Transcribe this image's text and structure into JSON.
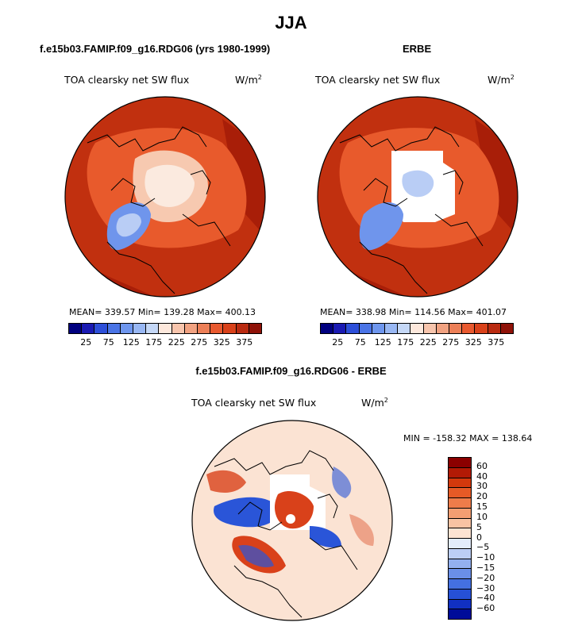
{
  "figure_title": "JJA",
  "panels": [
    {
      "title": "f.e15b03.FAMIP.f09_g16.RDG06 (yrs 1980-1999)",
      "variable": "TOA clearsky net SW flux",
      "unit_base": "W/m",
      "unit_exp": "2",
      "stats": "MEAN= 339.57   Min= 139.28   Max= 400.13"
    },
    {
      "title": "ERBE",
      "variable": "TOA clearsky net SW flux",
      "unit_base": "W/m",
      "unit_exp": "2",
      "stats": "MEAN= 338.98   Min= 114.56   Max= 401.07"
    },
    {
      "title": "f.e15b03.FAMIP.f09_g16.RDG06 - ERBE",
      "variable": "TOA clearsky net SW flux",
      "unit_base": "W/m",
      "unit_exp": "2",
      "stats": "MIN = -158.32  MAX = 138.64"
    }
  ],
  "abs_colorbar": {
    "colors": [
      "#00007f",
      "#1a1ab3",
      "#2d4fd9",
      "#4a74e6",
      "#6e96ee",
      "#98b7f3",
      "#c5d8f7",
      "#fde8dc",
      "#f7c5ad",
      "#f1a281",
      "#ec7f57",
      "#e8592f",
      "#d9411a",
      "#b92a10",
      "#8f1208"
    ],
    "ticks": [
      "25",
      "75",
      "125",
      "175",
      "225",
      "275",
      "325",
      "375"
    ]
  },
  "diff_colorbar": {
    "colors": [
      "#8b0000",
      "#b21a05",
      "#d3390d",
      "#e65a26",
      "#ee7c4a",
      "#f39e72",
      "#f8c3a3",
      "#fde3d2",
      "#e3ecfb",
      "#bccef5",
      "#93b0ef",
      "#6a8fe8",
      "#4470e1",
      "#2650d6",
      "#1130c2",
      "#000c99"
    ],
    "labels": [
      "60",
      "40",
      "30",
      "20",
      "15",
      "10",
      "5",
      "0",
      "−5",
      "−10",
      "−15",
      "−20",
      "−30",
      "−40",
      "−60"
    ]
  },
  "map_colors": {
    "base": "#c1300f",
    "ocean_dark": "#a81e08",
    "mid": "#e85a2c",
    "light": "#f7c9b0",
    "pale": "#fbeadf",
    "ice_blue": "#6f95ec",
    "ice_light": "#b9cdf5",
    "white": "#ffffff",
    "diff_bg": "#fbe3d3",
    "diff_red": "#d9411a",
    "diff_blue": "#2a55d8"
  }
}
